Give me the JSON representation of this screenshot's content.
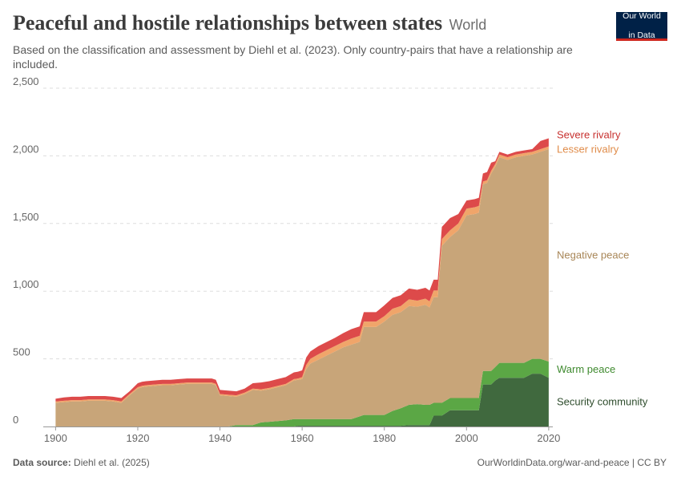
{
  "header": {
    "title": "Peaceful and hostile relationships between states",
    "entity": "World",
    "subtitle": "Based on the classification and assessment by Diehl et al. (2023). Only country-pairs that have a relationship are included.",
    "logo_line1": "Our World",
    "logo_line2": "in Data"
  },
  "footer": {
    "source_label": "Data source:",
    "source_value": "Diehl et al. (2025)",
    "url": "OurWorldinData.org/war-and-peace | CC BY"
  },
  "chart_data": {
    "type": "area",
    "stacked": true,
    "x_label": "",
    "y_label": "",
    "xlim": [
      1900,
      2020
    ],
    "ylim": [
      0,
      2500
    ],
    "x_ticks": [
      1900,
      1920,
      1940,
      1960,
      1980,
      2000,
      2020
    ],
    "x_tick_labels": [
      "1900",
      "1920",
      "1940",
      "1960",
      "1980",
      "2000",
      "2020"
    ],
    "y_ticks": [
      0,
      500,
      1000,
      1500,
      2000,
      2500
    ],
    "y_tick_labels": [
      "0",
      "500",
      "1,000",
      "1,500",
      "2,000",
      "2,500"
    ],
    "grid": "horizontal dashed",
    "legend": "right (inline labels)",
    "x": [
      1900,
      1902,
      1904,
      1906,
      1908,
      1910,
      1912,
      1914,
      1916,
      1918,
      1920,
      1921,
      1922,
      1924,
      1926,
      1928,
      1930,
      1932,
      1934,
      1936,
      1938,
      1939,
      1940,
      1942,
      1944,
      1946,
      1948,
      1950,
      1952,
      1954,
      1956,
      1958,
      1959,
      1960,
      1961,
      1962,
      1964,
      1966,
      1968,
      1970,
      1972,
      1974,
      1975,
      1976,
      1978,
      1980,
      1982,
      1984,
      1986,
      1988,
      1990,
      1991,
      1992,
      1993,
      1994,
      1996,
      1998,
      2000,
      2002,
      2003,
      2004,
      2005,
      2006,
      2007,
      2008,
      2010,
      2012,
      2014,
      2016,
      2018,
      2020
    ],
    "series": [
      {
        "name": "Security community",
        "color": "#40693e",
        "values": [
          0,
          0,
          0,
          0,
          0,
          0,
          0,
          0,
          0,
          0,
          0,
          0,
          0,
          0,
          0,
          0,
          0,
          0,
          0,
          0,
          0,
          0,
          0,
          0,
          0,
          0,
          0,
          0,
          0,
          0,
          0,
          0,
          5,
          5,
          5,
          5,
          5,
          5,
          5,
          5,
          5,
          5,
          5,
          5,
          5,
          5,
          5,
          5,
          10,
          10,
          10,
          10,
          80,
          80,
          80,
          120,
          120,
          120,
          120,
          120,
          310,
          310,
          310,
          340,
          360,
          360,
          360,
          360,
          390,
          390,
          360
        ]
      },
      {
        "name": "Warm peace",
        "color": "#5ba745",
        "values": [
          0,
          0,
          0,
          0,
          0,
          0,
          0,
          0,
          0,
          0,
          0,
          0,
          0,
          0,
          0,
          0,
          0,
          0,
          0,
          0,
          0,
          0,
          0,
          0,
          10,
          10,
          10,
          30,
          35,
          40,
          45,
          55,
          50,
          50,
          50,
          50,
          50,
          50,
          50,
          50,
          50,
          70,
          80,
          80,
          80,
          80,
          110,
          130,
          150,
          155,
          150,
          150,
          95,
          95,
          95,
          90,
          90,
          90,
          90,
          90,
          100,
          100,
          100,
          100,
          110,
          110,
          110,
          110,
          110,
          110,
          120
        ]
      },
      {
        "name": "Negative peace",
        "color": "#c8a579",
        "values": [
          175,
          180,
          185,
          185,
          190,
          190,
          190,
          185,
          175,
          230,
          280,
          290,
          295,
          300,
          305,
          305,
          310,
          315,
          315,
          315,
          315,
          305,
          230,
          225,
          210,
          230,
          260,
          235,
          240,
          250,
          260,
          285,
          290,
          295,
          370,
          410,
          440,
          470,
          500,
          530,
          550,
          550,
          650,
          650,
          650,
          690,
          710,
          710,
          730,
          720,
          740,
          720,
          780,
          780,
          1160,
          1190,
          1240,
          1350,
          1360,
          1370,
          1380,
          1390,
          1460,
          1480,
          1520,
          1500,
          1520,
          1530,
          1510,
          1530,
          1570
        ]
      },
      {
        "name": "Lesser rivalry",
        "color": "#f0a56a",
        "values": [
          10,
          10,
          10,
          10,
          10,
          10,
          10,
          10,
          10,
          10,
          10,
          10,
          10,
          10,
          10,
          10,
          10,
          10,
          10,
          10,
          10,
          10,
          10,
          10,
          10,
          10,
          10,
          10,
          10,
          10,
          10,
          10,
          10,
          15,
          30,
          35,
          40,
          40,
          40,
          40,
          45,
          45,
          40,
          40,
          40,
          40,
          45,
          45,
          50,
          45,
          45,
          45,
          50,
          50,
          50,
          50,
          50,
          50,
          50,
          50,
          20,
          20,
          20,
          20,
          20,
          20,
          20,
          20,
          20,
          20,
          20
        ]
      },
      {
        "name": "Severe rivalry",
        "color": "#dd4a4a",
        "values": [
          20,
          25,
          25,
          25,
          25,
          25,
          25,
          25,
          25,
          20,
          30,
          30,
          30,
          30,
          30,
          30,
          30,
          30,
          30,
          30,
          30,
          30,
          30,
          30,
          30,
          30,
          40,
          50,
          50,
          50,
          50,
          50,
          50,
          50,
          55,
          55,
          60,
          60,
          60,
          65,
          70,
          70,
          70,
          70,
          70,
          80,
          80,
          80,
          80,
          80,
          80,
          80,
          80,
          80,
          90,
          90,
          70,
          60,
          60,
          60,
          60,
          60,
          60,
          20,
          20,
          20,
          20,
          20,
          20,
          60,
          60
        ]
      }
    ]
  }
}
